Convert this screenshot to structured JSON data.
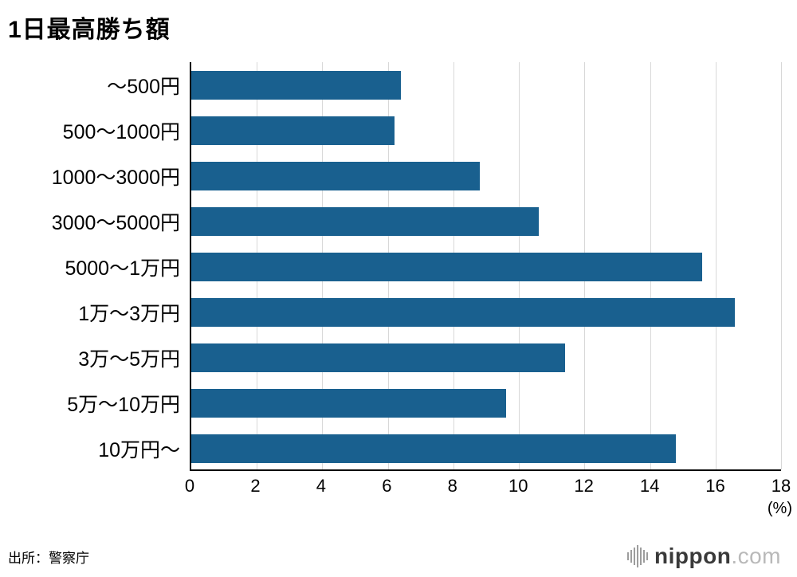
{
  "title": "1日最高勝ち額",
  "source": "出所：警察庁",
  "logo": {
    "name": "nippon",
    "tld": ".com"
  },
  "chart_data": {
    "type": "bar",
    "orientation": "horizontal",
    "title": "1日最高勝ち額",
    "categories": [
      "〜500円",
      "500〜1000円",
      "1000〜3000円",
      "3000〜5000円",
      "5000〜1万円",
      "1万〜3万円",
      "3万〜5万円",
      "5万〜10万円",
      "10万円〜"
    ],
    "values": [
      6.4,
      6.2,
      8.8,
      10.6,
      15.6,
      16.6,
      11.4,
      9.6,
      14.8
    ],
    "xlabel": "(%)",
    "xlim": [
      0,
      18
    ],
    "xticks": [
      0,
      2,
      4,
      6,
      8,
      10,
      12,
      14,
      16,
      18
    ],
    "bar_color": "#19608f",
    "grid": true,
    "legend": "none"
  }
}
